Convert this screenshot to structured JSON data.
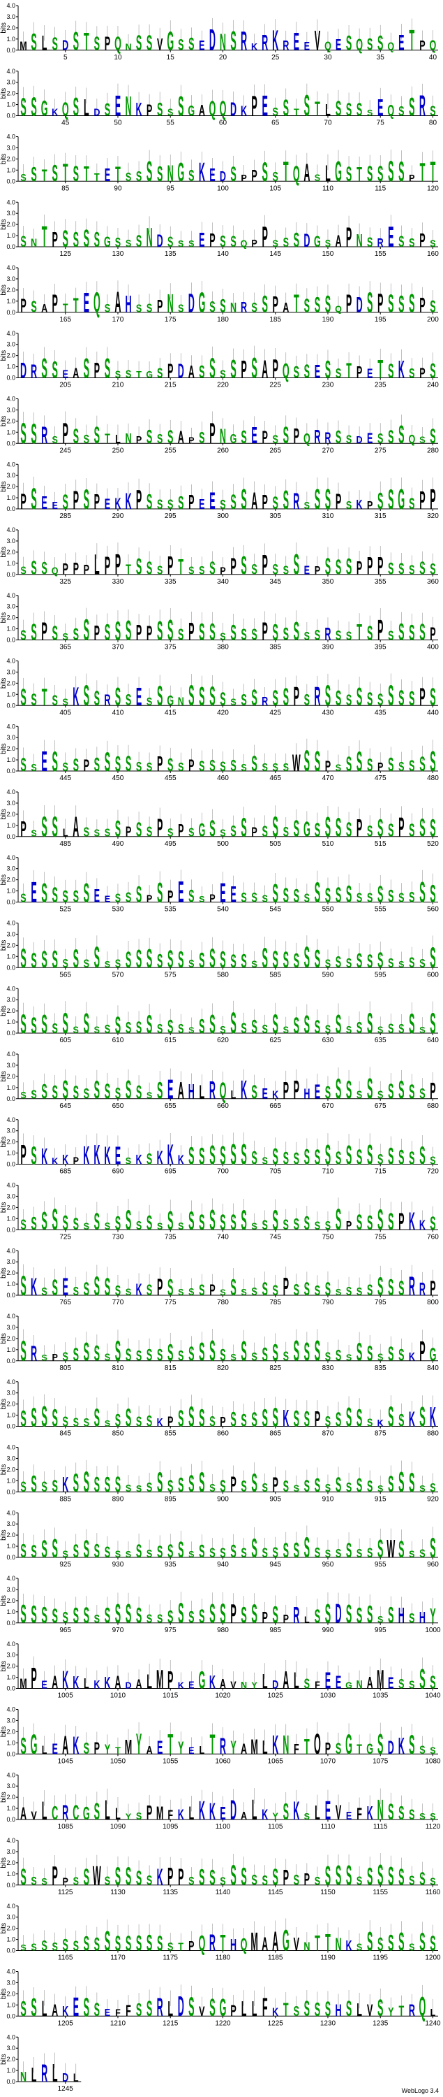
{
  "chart_data": {
    "type": "sequence-logo",
    "title": "",
    "ylabel": "bits",
    "ylim": [
      0,
      4.0
    ],
    "y_ticks": [
      "0.0",
      "1.0",
      "2.0",
      "3.0",
      "4.0"
    ],
    "positions_per_row": 40,
    "sequence_length": 1248,
    "x_tick_step": 5,
    "x_tick_labels": [
      [
        "5",
        "10",
        "15",
        "20",
        "25",
        "30",
        "35",
        "40"
      ],
      [
        "45",
        "50",
        "55",
        "60",
        "65",
        "70",
        "75",
        "80"
      ],
      [
        "85",
        "90",
        "95",
        "100",
        "105",
        "110",
        "115",
        "120"
      ],
      [
        "125",
        "130",
        "135",
        "140",
        "145",
        "150",
        "155",
        "160"
      ],
      [
        "165",
        "170",
        "175",
        "180",
        "185",
        "190",
        "195",
        "200"
      ],
      [
        "205",
        "210",
        "215",
        "220",
        "225",
        "230",
        "235",
        "240"
      ],
      [
        "245",
        "250",
        "255",
        "260",
        "265",
        "270",
        "275",
        "280"
      ],
      [
        "285",
        "290",
        "295",
        "300",
        "305",
        "310",
        "315",
        "320"
      ],
      [
        "325",
        "330",
        "335",
        "340",
        "345",
        "350",
        "355",
        "360"
      ],
      [
        "365",
        "370",
        "375",
        "380",
        "385",
        "390",
        "395",
        "400"
      ],
      [
        "405",
        "410",
        "415",
        "420",
        "425",
        "430",
        "435",
        "440"
      ],
      [
        "445",
        "450",
        "455",
        "460",
        "465",
        "470",
        "475",
        "480"
      ],
      [
        "485",
        "490",
        "495",
        "500",
        "505",
        "510",
        "515",
        "520"
      ],
      [
        "525",
        "530",
        "535",
        "540",
        "545",
        "550",
        "555",
        "560"
      ],
      [
        "565",
        "570",
        "575",
        "580",
        "585",
        "590",
        "595",
        "600"
      ],
      [
        "605",
        "610",
        "615",
        "620",
        "625",
        "630",
        "635",
        "640"
      ],
      [
        "645",
        "650",
        "655",
        "660",
        "665",
        "670",
        "675",
        "680"
      ],
      [
        "685",
        "690",
        "695",
        "700",
        "705",
        "710",
        "715",
        "720"
      ],
      [
        "725",
        "730",
        "735",
        "740",
        "745",
        "750",
        "755",
        "760"
      ],
      [
        "765",
        "770",
        "775",
        "780",
        "785",
        "790",
        "795",
        "800"
      ],
      [
        "805",
        "810",
        "815",
        "820",
        "825",
        "830",
        "835",
        "840"
      ],
      [
        "845",
        "850",
        "855",
        "860",
        "865",
        "870",
        "875",
        "880"
      ],
      [
        "885",
        "890",
        "895",
        "900",
        "905",
        "910",
        "915",
        "920"
      ],
      [
        "925",
        "930",
        "935",
        "940",
        "945",
        "950",
        "955",
        "960"
      ],
      [
        "965",
        "970",
        "975",
        "980",
        "985",
        "990",
        "995",
        "1000"
      ],
      [
        "1005",
        "1010",
        "1015",
        "1020",
        "1025",
        "1030",
        "1035",
        "1040"
      ],
      [
        "1045",
        "1050",
        "1055",
        "1060",
        "1065",
        "1070",
        "1075",
        "1080"
      ],
      [
        "1085",
        "1090",
        "1095",
        "1100",
        "1105",
        "1110",
        "1115",
        "1120"
      ],
      [
        "1125",
        "1130",
        "1135",
        "1140",
        "1145",
        "1150",
        "1155",
        "1160"
      ],
      [
        "1165",
        "1170",
        "1175",
        "1180",
        "1185",
        "1190",
        "1195",
        "1200"
      ],
      [
        "1205",
        "1210",
        "1215",
        "1220",
        "1225",
        "1230",
        "1235",
        "1240"
      ],
      [
        "1245"
      ]
    ],
    "row_sequences": [
      "MSLSDSTSPQNSSVGSSEDNSRKRKREEVQESQSSQETPQ",
      "SSGKQSLDSENKPSSSGAQQDKPESSTSTLSSSSEQSSRS",
      "SSTSTSTTETSSSSNGSKEDSPPSSTQASLGSTSSSSPTT",
      "SNTPSSSSGSSSNDSSSEPSSQPPSSSDGSAPNSRESSPS",
      "PSAPTTEQSAHSSPNSDGSSNRSSPATSSSQPDSPSSSPS",
      "DRSSEASPSSSTGSPDASSSSPSAPQSSESSTPETSKSPS",
      "SSRSPSSSTLNPSSSAPSPNGSEPSSPQRRSSDESSSQSS",
      "PSEESPSPEKKPSSSSPEESSSAPSSRSSSPSKPSSGSPP",
      "SSSQPPPLPPTSSSPTSSSPPSSPSSSEPSSSPPPSSSSS",
      "SSPSSSSPSSSPPSSSPSSSSSSPSSSSSRSSTSPSSSSP",
      "SSTSSKSSRSSESSGNSSSSSSSRSSPSRSSSSSSSSSPS",
      "SSESSSPSSSSSSPSSPSSSSSSSSSWSSPSSSSPSSSSS",
      "PSSSLASSSSPSSPSPSGSSSSPSSSSGSSSSPSSSPSSS",
      "SESSSSSEESSSPSPESSPEESSSSSSSSSSSSSSSSSSS",
      "SSSSSSSSSSSSSSSSSSSSSSSSSSSSSSSSSSSSSSSS",
      "SSSSSSSSSSSSSSSSSSSSSSSSSSSSSSSSSSSSSSSS",
      "SSSSSSSSSSSSSSEAHLRQLKSEKPPHESSSSSSSSSSP",
      "PSKKKPKKKESKSKKKSSSSSSSSSSSSSSSSSSSSSSSS",
      "SSSSSSSSSSSSSSSSSSSSSSSSSSSSSSSPSSSSPKKS",
      "SKSSESSSSSSKSPSSSSPSSSSSSPSSSSSSSSSSSRRP",
      "SRSPSSSSSSSSSSSSSSSSSSSSSSSSSSSSSSSSSKPG",
      "SSSSSSSSSSSSSKPSSSSPSSSSSKSSPSSSSSKSSKSK",
      "SSSSKSSSSSSSSSSSSSSSPSSSPSSSSSSSSSSSSSSS",
      "SSSSSSSSSSSSSSSSSSSSSSSSSSSSSSSSSSSWSSSS",
      "SSSSSSSSSSSSSSSSSSSSPSSPSPRLSSDSSSSSHSHY",
      "MPEAKKLKKADALMPKEGKAVNYLDALSFEEGNAMESSSS",
      "SGLEAKSPYTMYAETYELTRYAMLKNFTOPSGTGSDKSSS",
      "AVLCRCGSLLYSPMFKLKKEDALKYSKSLEVEFKNSSSSS",
      "SSSPPSSWSSSSSKPPSSSSSSSSSPSPSSSSSSSSSSSS",
      "SSSSSSSSSSSSSSSTPQRTHQMAAGVNTTNKSSSSSSSS",
      "SSLAKESSEFFSSRLDSVSGPLLFKTSSSSHSLVSYTRQL",
      "NLRLDL"
    ],
    "stack_colors": {
      "blue": "#0000cc",
      "green": "#009900",
      "black": "#000000"
    },
    "footer": "WebLogo 3.4"
  }
}
